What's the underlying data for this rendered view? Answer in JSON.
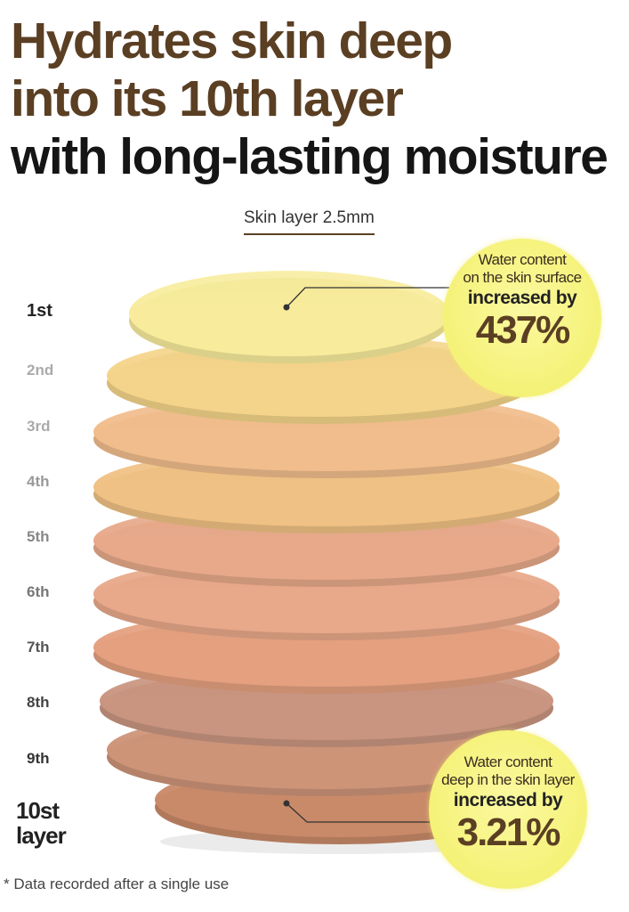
{
  "title": {
    "line1": "Hydrates skin deep",
    "line2": "into its 10th layer",
    "line3": "with long-lasting moisture"
  },
  "subtitle": "Skin layer  2.5mm",
  "layers": [
    {
      "label": "1st",
      "color": "#f8ec9c"
    },
    {
      "label": "2nd",
      "color": "#f4d48a"
    },
    {
      "label": "3rd",
      "color": "#f1bd8c"
    },
    {
      "label": "4th",
      "color": "#f0c184"
    },
    {
      "label": "5th",
      "color": "#e7a98a"
    },
    {
      "label": "6th",
      "color": "#e8a88a"
    },
    {
      "label": "7th",
      "color": "#e4a07f"
    },
    {
      "label": "8th",
      "color": "#c99580"
    },
    {
      "label": "9th",
      "color": "#cd9478"
    },
    {
      "label": "10st",
      "label2": "layer",
      "color": "#c98a69"
    }
  ],
  "callout_top": {
    "line1": "Water content",
    "line2": "on the skin surface",
    "line3": "increased by",
    "value": "437%"
  },
  "callout_bottom": {
    "line1": "Water content",
    "line2": "deep  in the skin layer",
    "line3": "increased by",
    "value": "3.21%"
  },
  "footnote": "* Data recorded after a single use",
  "colors": {
    "title_brown": "#5b3f23",
    "bubble": "#f5f27a"
  }
}
